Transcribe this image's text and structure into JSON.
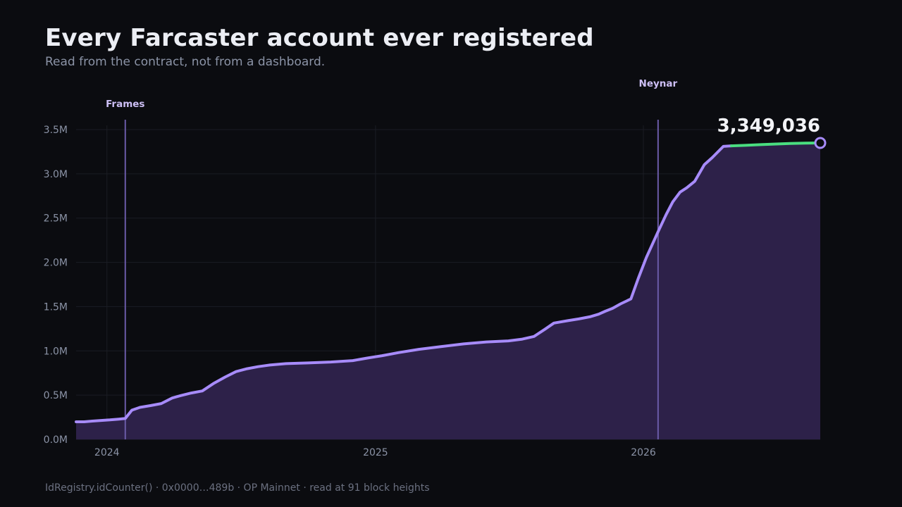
{
  "header": {
    "title": "Every Farcaster account ever registered",
    "subtitle": "Read from the contract, not from a dashboard."
  },
  "footer": {
    "text": "IdRegistry.idCounter() · 0x0000…489b · OP Mainnet · read at 91 block heights"
  },
  "colors": {
    "background": "#0b0c10",
    "line": "#a78bfa",
    "area": "#2d2149",
    "recent": "#4ade80",
    "gridline": "#1b1d24",
    "event_line": "#6b5ba8"
  },
  "chart_data": {
    "type": "area",
    "x_axis_type": "date",
    "xlim": [
      "2023-11-20",
      "2026-08-30"
    ],
    "ylim": [
      0,
      3500000
    ],
    "y_ticks": [
      0,
      500000,
      1000000,
      1500000,
      2000000,
      2500000,
      3000000,
      3500000
    ],
    "y_tick_labels": [
      "0.0M",
      "0.5M",
      "1.0M",
      "1.5M",
      "2.0M",
      "2.5M",
      "3.0M",
      "3.5M"
    ],
    "x_ticks": [
      "2024-01-01",
      "2025-01-01",
      "2026-01-01"
    ],
    "x_tick_labels": [
      "2024",
      "2025",
      "2026"
    ],
    "grid": true,
    "events": [
      {
        "label": "Frames",
        "date": "2024-01-26"
      },
      {
        "label": "Neynar",
        "date": "2026-01-21"
      }
    ],
    "latest": {
      "date": "2026-08-30",
      "value": 3349036,
      "label": "3,349,036"
    },
    "recent_from": "2026-05-01",
    "series": [
      {
        "points": [
          [
            "2023-11-20",
            199000
          ],
          [
            "2023-12-01",
            199000
          ],
          [
            "2023-12-12",
            207000
          ],
          [
            "2023-12-24",
            214000
          ],
          [
            "2024-01-05",
            220000
          ],
          [
            "2024-01-17",
            229000
          ],
          [
            "2024-01-26",
            236000
          ],
          [
            "2024-02-04",
            330000
          ],
          [
            "2024-02-15",
            362000
          ],
          [
            "2024-03-01",
            383000
          ],
          [
            "2024-03-15",
            405000
          ],
          [
            "2024-03-30",
            468000
          ],
          [
            "2024-04-10",
            494000
          ],
          [
            "2024-04-25",
            524000
          ],
          [
            "2024-05-10",
            547000
          ],
          [
            "2024-05-25",
            630000
          ],
          [
            "2024-06-10",
            704000
          ],
          [
            "2024-06-25",
            766000
          ],
          [
            "2024-07-10",
            799000
          ],
          [
            "2024-07-25",
            822000
          ],
          [
            "2024-08-10",
            840000
          ],
          [
            "2024-09-01",
            856000
          ],
          [
            "2024-10-01",
            864000
          ],
          [
            "2024-11-01",
            874000
          ],
          [
            "2024-12-01",
            890000
          ],
          [
            "2024-12-20",
            918000
          ],
          [
            "2025-01-10",
            946000
          ],
          [
            "2025-02-01",
            980000
          ],
          [
            "2025-03-01",
            1017000
          ],
          [
            "2025-04-01",
            1049000
          ],
          [
            "2025-05-01",
            1079000
          ],
          [
            "2025-06-01",
            1101000
          ],
          [
            "2025-07-01",
            1113000
          ],
          [
            "2025-07-20",
            1133000
          ],
          [
            "2025-08-05",
            1163000
          ],
          [
            "2025-08-20",
            1246000
          ],
          [
            "2025-09-01",
            1314000
          ],
          [
            "2025-09-20",
            1341000
          ],
          [
            "2025-10-05",
            1361000
          ],
          [
            "2025-10-20",
            1385000
          ],
          [
            "2025-11-01",
            1414000
          ],
          [
            "2025-11-10",
            1448000
          ],
          [
            "2025-11-20",
            1480000
          ],
          [
            "2025-12-01",
            1531000
          ],
          [
            "2025-12-15",
            1587000
          ],
          [
            "2025-12-25",
            1818000
          ],
          [
            "2026-01-05",
            2055000
          ],
          [
            "2026-01-21",
            2345000
          ],
          [
            "2026-02-01",
            2540000
          ],
          [
            "2026-02-10",
            2683000
          ],
          [
            "2026-02-20",
            2794000
          ],
          [
            "2026-03-01",
            2842000
          ],
          [
            "2026-03-12",
            2916000
          ],
          [
            "2026-03-25",
            3103000
          ],
          [
            "2026-04-05",
            3185000
          ],
          [
            "2026-04-20",
            3310000
          ],
          [
            "2026-05-01",
            3316000
          ],
          [
            "2026-05-20",
            3322000
          ],
          [
            "2026-06-10",
            3330000
          ],
          [
            "2026-07-01",
            3337000
          ],
          [
            "2026-07-20",
            3343000
          ],
          [
            "2026-08-10",
            3347000
          ],
          [
            "2026-08-30",
            3349036
          ]
        ]
      }
    ]
  }
}
